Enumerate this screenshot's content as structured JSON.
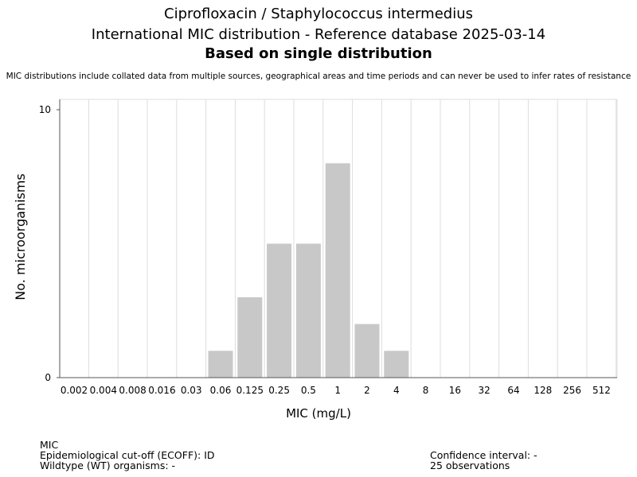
{
  "chart_data": {
    "type": "bar",
    "title": "Ciprofloxacin / Staphylococcus intermedius",
    "subtitle_line2": "International MIC distribution - Reference database 2025-03-14",
    "subtitle_line3": "Based on single distribution",
    "note": "MIC distributions include collated data from multiple sources, geographical areas and time periods and can never be used to infer rates of resistance",
    "xlabel": "MIC (mg/L)",
    "ylabel": "No. microorganisms",
    "categories": [
      "0.002",
      "0.004",
      "0.008",
      "0.016",
      "0.03",
      "0.06",
      "0.125",
      "0.25",
      "0.5",
      "1",
      "2",
      "4",
      "8",
      "16",
      "32",
      "64",
      "128",
      "256",
      "512"
    ],
    "values": [
      0,
      0,
      0,
      0,
      0,
      1,
      3,
      5,
      5,
      8,
      2,
      1,
      0,
      0,
      0,
      0,
      0,
      0,
      0
    ],
    "ylim": [
      0,
      10
    ],
    "yticks": [
      "0",
      "10"
    ],
    "grid": true,
    "bar_color": "#c8c8c8"
  },
  "footer": {
    "mic_label": "MIC",
    "ecoff": "Epidemiological cut-off (ECOFF): ID",
    "wildtype": "Wildtype (WT) organisms:  -",
    "confidence": "Confidence interval: -",
    "observations": "25 observations"
  }
}
